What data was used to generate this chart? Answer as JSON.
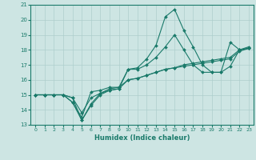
{
  "x": [
    0,
    1,
    2,
    3,
    4,
    5,
    6,
    7,
    8,
    9,
    10,
    11,
    12,
    13,
    14,
    15,
    16,
    17,
    18,
    19,
    20,
    21,
    22,
    23
  ],
  "line1": [
    15,
    15,
    15,
    15,
    14.5,
    13.5,
    15.2,
    15.3,
    15.5,
    15.5,
    16.7,
    16.8,
    17.4,
    18.3,
    20.2,
    20.7,
    19.3,
    18.2,
    17.0,
    16.5,
    16.5,
    16.9,
    18.0,
    18.1
  ],
  "line2": [
    15,
    15,
    15,
    15,
    14.5,
    13.3,
    14.4,
    15.1,
    15.3,
    15.4,
    16.7,
    16.7,
    17.0,
    17.5,
    18.2,
    19.0,
    18.0,
    17.0,
    16.5,
    16.5,
    16.5,
    18.5,
    18.0,
    18.1
  ],
  "line3": [
    15,
    15,
    15,
    15,
    14.8,
    13.3,
    14.3,
    15.0,
    15.3,
    15.4,
    16.0,
    16.1,
    16.3,
    16.5,
    16.7,
    16.8,
    16.9,
    17.0,
    17.1,
    17.2,
    17.3,
    17.4,
    17.9,
    18.1
  ],
  "line4": [
    15,
    15,
    15,
    15,
    14.8,
    13.8,
    14.8,
    15.1,
    15.4,
    15.5,
    16.0,
    16.1,
    16.3,
    16.5,
    16.7,
    16.8,
    17.0,
    17.1,
    17.2,
    17.3,
    17.4,
    17.5,
    18.0,
    18.2
  ],
  "color": "#1a7a6a",
  "bg_color": "#cde5e3",
  "grid_color": "#aecfcd",
  "xlabel": "Humidex (Indice chaleur)",
  "xlim": [
    -0.5,
    23.5
  ],
  "ylim": [
    13,
    21
  ],
  "yticks": [
    13,
    14,
    15,
    16,
    17,
    18,
    19,
    20,
    21
  ],
  "xticks": [
    0,
    1,
    2,
    3,
    4,
    5,
    6,
    7,
    8,
    9,
    10,
    11,
    12,
    13,
    14,
    15,
    16,
    17,
    18,
    19,
    20,
    21,
    22,
    23
  ]
}
